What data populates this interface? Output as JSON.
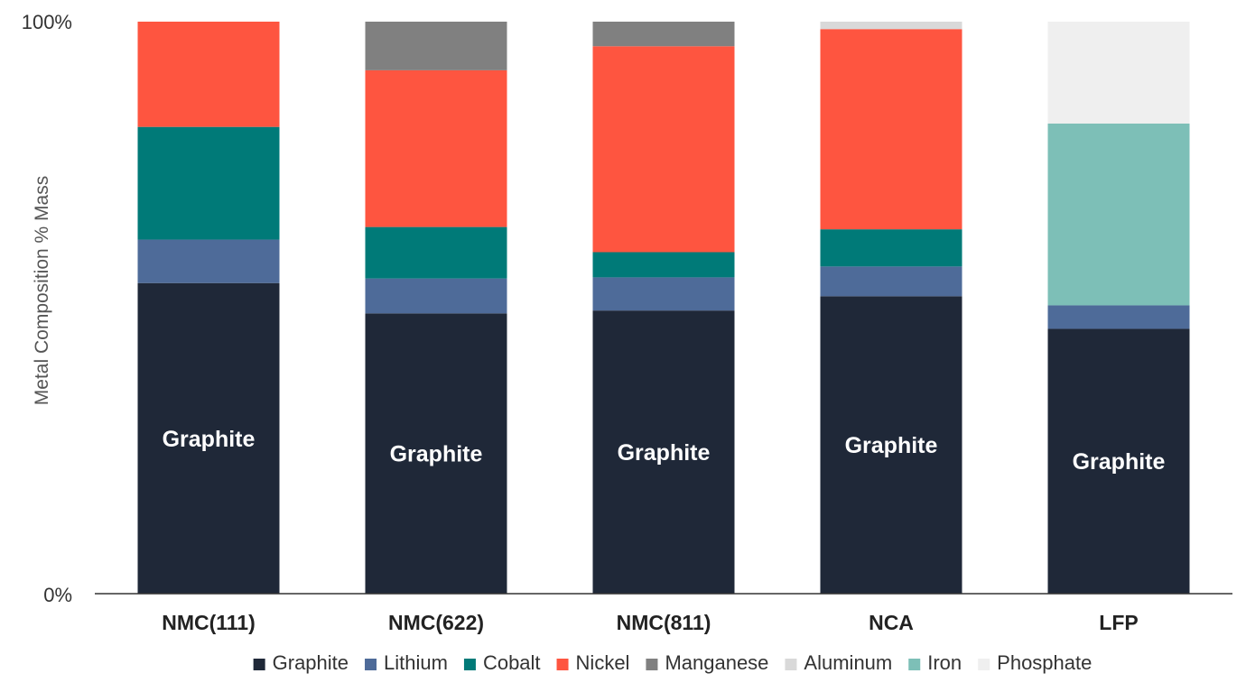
{
  "chart_data": {
    "type": "bar",
    "stacked": true,
    "ylabel": "Metal Composition % Mass",
    "ylim": [
      0,
      100
    ],
    "yticks": [
      "0%",
      "100%"
    ],
    "grid": false,
    "legend_position": "bottom",
    "categories": [
      "NMC(111)",
      "NMC(622)",
      "NMC(811)",
      "NCA",
      "LFP"
    ],
    "bar_label_series": "Graphite",
    "series": [
      {
        "name": "Graphite",
        "color": "#1f2838",
        "values": [
          54.3,
          49.0,
          49.5,
          52.0,
          46.3
        ]
      },
      {
        "name": "Lithium",
        "color": "#4e6b99",
        "values": [
          7.6,
          6.1,
          5.8,
          5.2,
          4.1
        ]
      },
      {
        "name": "Cobalt",
        "color": "#007a78",
        "values": [
          19.7,
          9.0,
          4.4,
          6.5,
          0
        ]
      },
      {
        "name": "Nickel",
        "color": "#fe5540",
        "values": [
          18.4,
          27.4,
          36.0,
          35.0,
          0
        ]
      },
      {
        "name": "Manganese",
        "color": "#808080",
        "values": [
          0,
          8.5,
          4.3,
          0,
          0
        ]
      },
      {
        "name": "Aluminum",
        "color": "#d9d9d9",
        "values": [
          0,
          0,
          0,
          1.3,
          0
        ]
      },
      {
        "name": "Iron",
        "color": "#7dbfb7",
        "values": [
          0,
          0,
          0,
          0,
          31.8
        ]
      },
      {
        "name": "Phosphate",
        "color": "#efefef",
        "values": [
          0,
          0,
          0,
          0,
          17.8
        ]
      }
    ]
  }
}
